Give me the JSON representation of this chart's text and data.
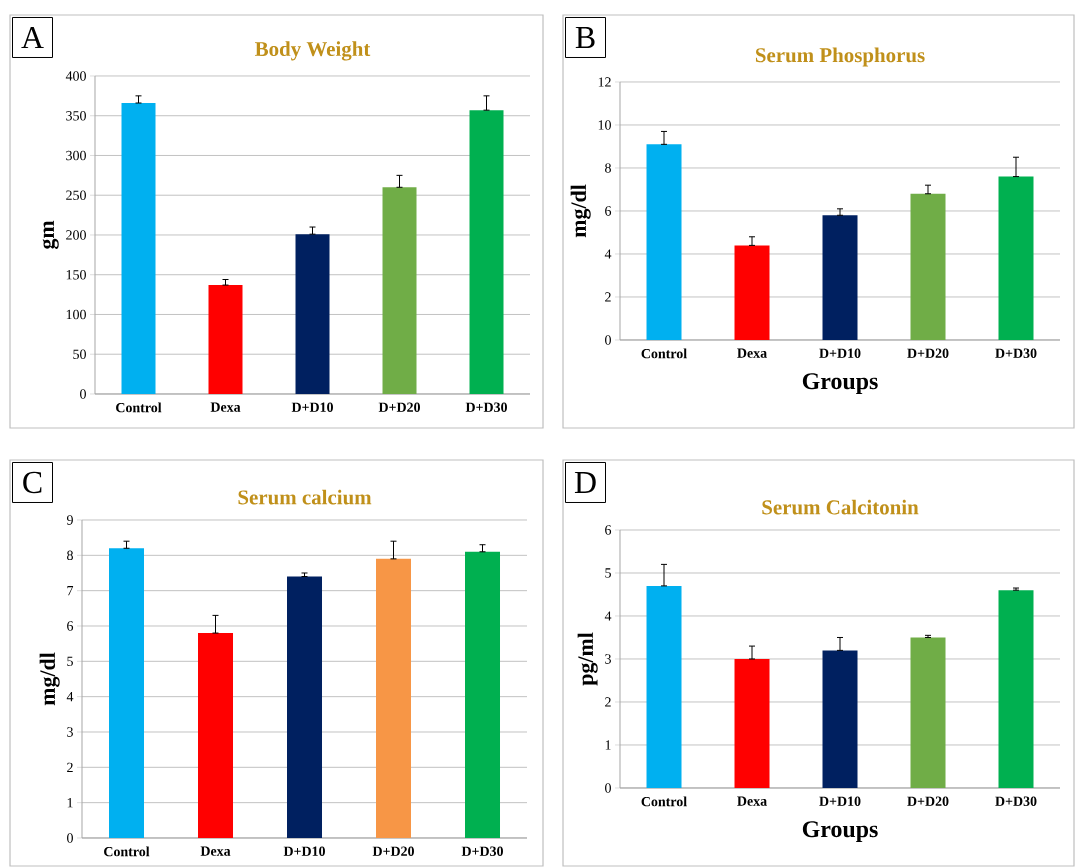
{
  "chart_data": [
    {
      "type": "bar",
      "title": "Body Weight",
      "ylabel": "gm",
      "categories": [
        "Control",
        "Dexa",
        "D+D10",
        "D+D20",
        "D+D30"
      ],
      "values": [
        366,
        137,
        201,
        260,
        357
      ],
      "colors": [
        "#00b0f0",
        "#ff0000",
        "#002060",
        "#70ad47",
        "#00b050"
      ],
      "errors": [
        [
          366,
          375
        ],
        [
          137,
          144
        ],
        [
          201,
          210
        ],
        [
          260,
          275
        ],
        [
          357,
          375
        ]
      ],
      "ylim": [
        0,
        400
      ],
      "yticks": [
        0,
        50,
        100,
        150,
        200,
        250,
        300,
        350,
        400
      ],
      "grid": "y",
      "annotations": [
        "A"
      ]
    },
    {
      "type": "bar",
      "title": "Serum Phosphorus",
      "ylabel": "mg/dl",
      "xlabel": "Groups",
      "categories": [
        "Control",
        "Dexa",
        "D+D10",
        "D+D20",
        "D+D30"
      ],
      "values": [
        9.1,
        4.4,
        5.8,
        6.8,
        7.6
      ],
      "colors": [
        "#00b0f0",
        "#ff0000",
        "#002060",
        "#70ad47",
        "#00b050"
      ],
      "errors": [
        [
          9.1,
          9.7
        ],
        [
          4.4,
          4.8
        ],
        [
          5.8,
          6.1
        ],
        [
          6.8,
          7.2
        ],
        [
          7.6,
          8.5
        ]
      ],
      "ylim": [
        0,
        12
      ],
      "yticks": [
        0,
        2,
        4,
        6,
        8,
        10,
        12
      ],
      "grid": "y",
      "annotations": [
        "B"
      ]
    },
    {
      "type": "bar",
      "title": "Serum calcium",
      "ylabel": "mg/dl",
      "categories": [
        "Control",
        "Dexa",
        "D+D10",
        "D+D20",
        "D+D30"
      ],
      "values": [
        8.2,
        5.8,
        7.4,
        7.9,
        8.1
      ],
      "colors": [
        "#00b0f0",
        "#ff0000",
        "#002060",
        "#f79646",
        "#00b050"
      ],
      "errors": [
        [
          8.2,
          8.4
        ],
        [
          5.8,
          6.3
        ],
        [
          7.4,
          7.5
        ],
        [
          7.9,
          8.4
        ],
        [
          8.1,
          8.3
        ]
      ],
      "ylim": [
        0,
        9
      ],
      "yticks": [
        0,
        1,
        2,
        3,
        4,
        5,
        6,
        7,
        8,
        9
      ],
      "grid": "y",
      "annotations": [
        "C"
      ]
    },
    {
      "type": "bar",
      "title": "Serum Calcitonin",
      "ylabel": "pg/ml",
      "xlabel": "Groups",
      "categories": [
        "Control",
        "Dexa",
        "D+D10",
        "D+D20",
        "D+D30"
      ],
      "values": [
        4.7,
        3.0,
        3.2,
        3.5,
        4.6
      ],
      "colors": [
        "#00b0f0",
        "#ff0000",
        "#002060",
        "#70ad47",
        "#00b050"
      ],
      "errors": [
        [
          4.7,
          5.2
        ],
        [
          3.0,
          3.3
        ],
        [
          3.2,
          3.5
        ],
        [
          3.5,
          3.55
        ],
        [
          4.6,
          4.65
        ]
      ],
      "ylim": [
        0,
        6
      ],
      "yticks": [
        0,
        1,
        2,
        3,
        4,
        5,
        6
      ],
      "grid": "y",
      "annotations": [
        "D"
      ]
    }
  ]
}
